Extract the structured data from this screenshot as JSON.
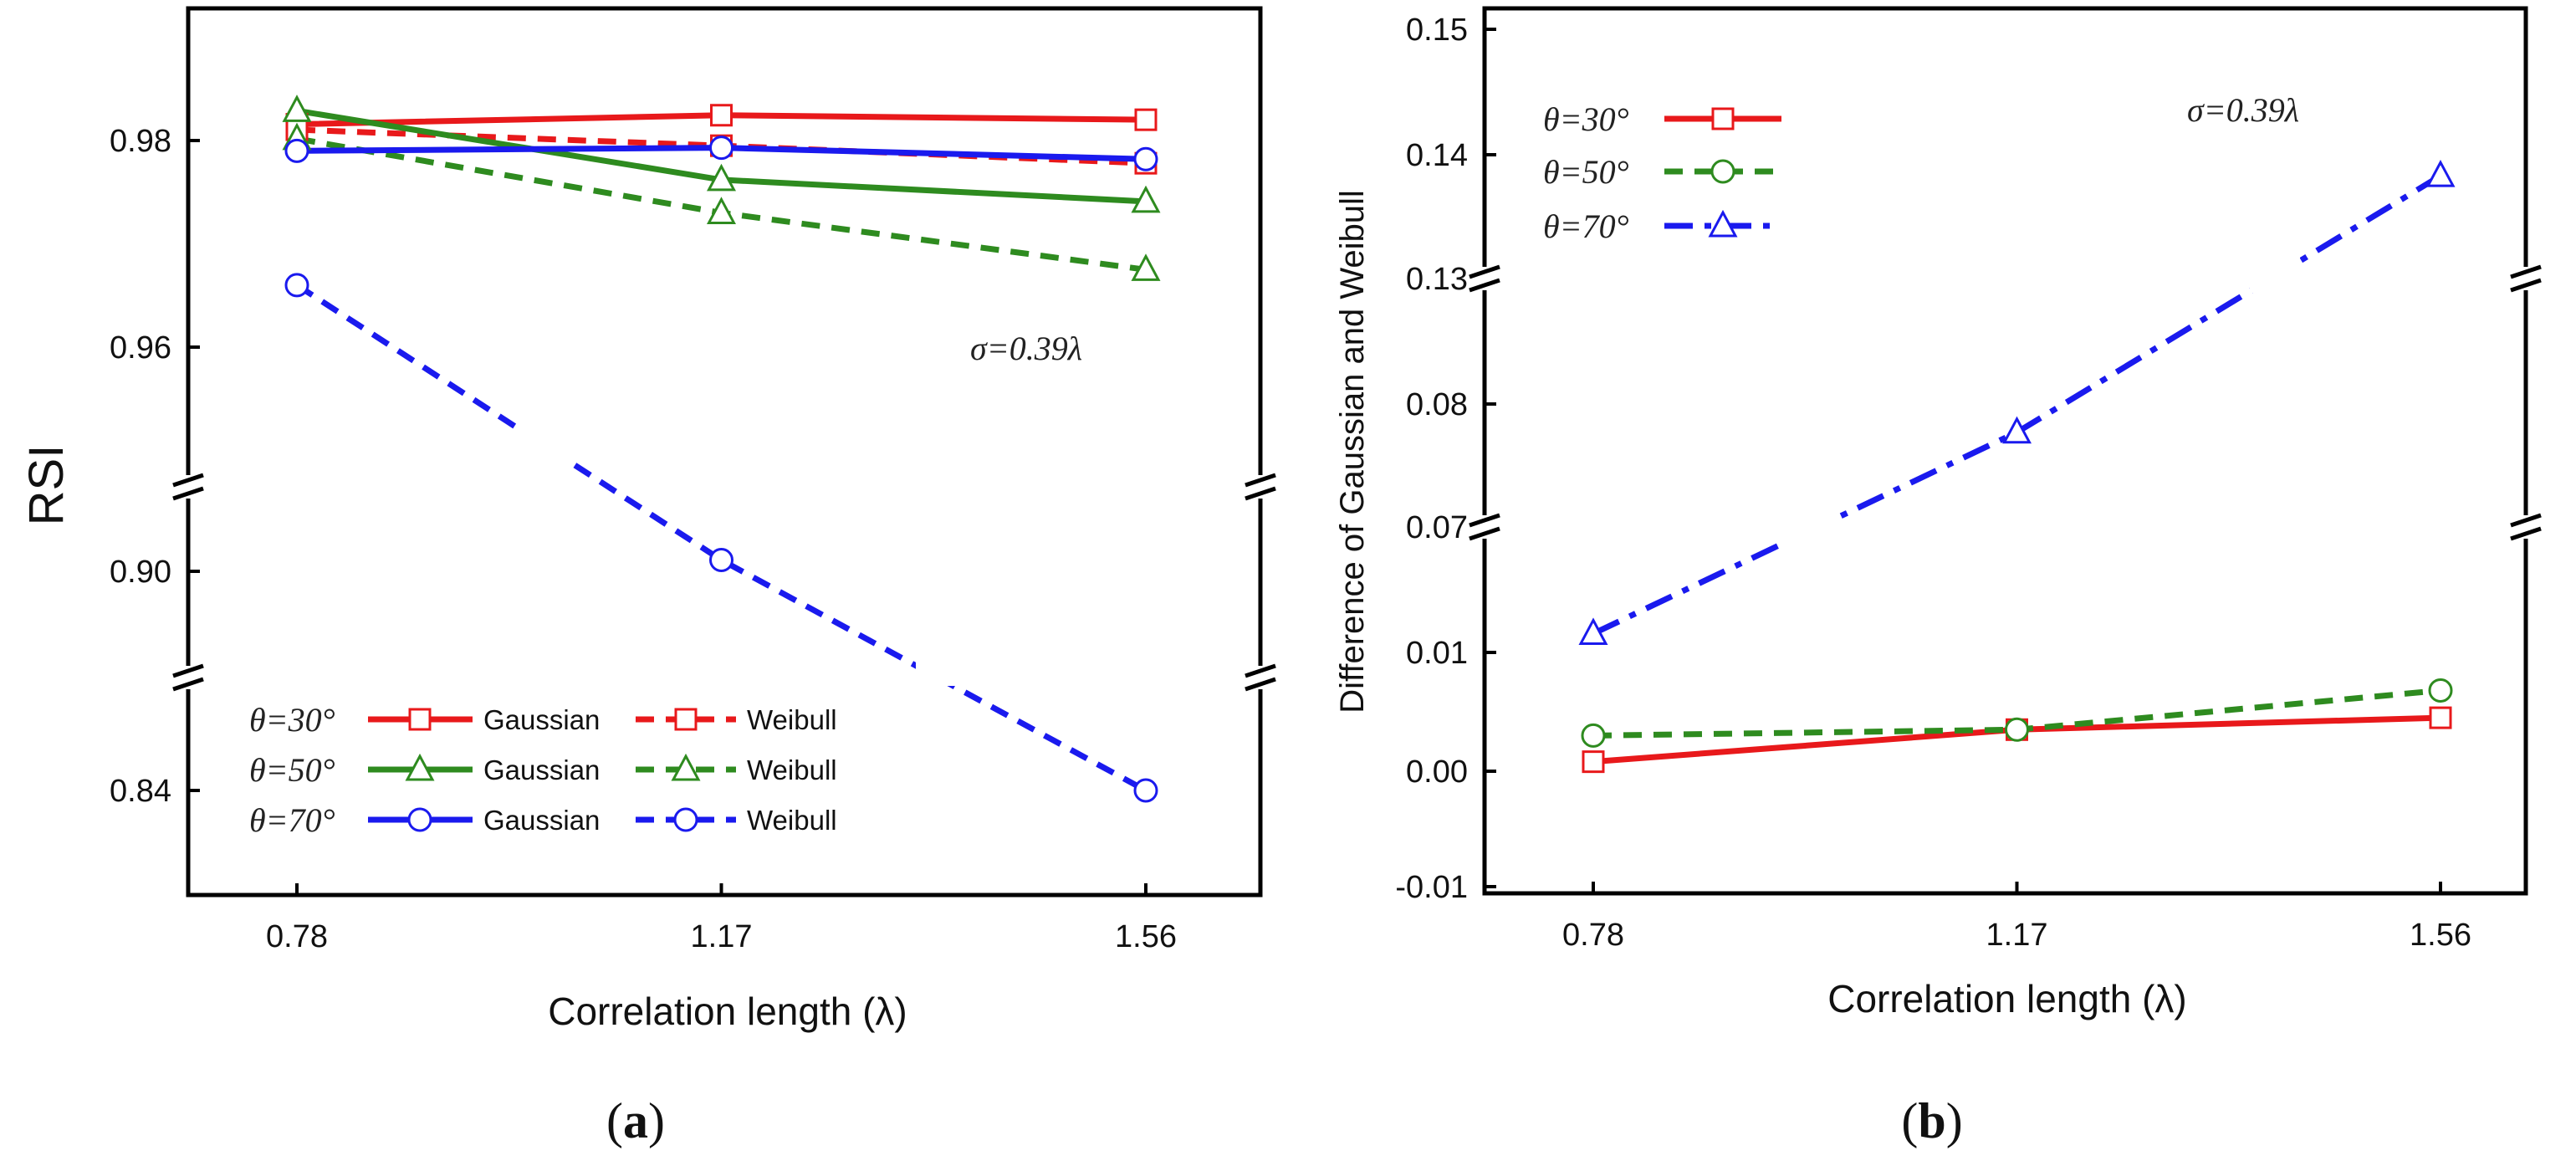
{
  "figure": {
    "caption_a": "a",
    "caption_b": "b"
  },
  "chart_data": [
    {
      "type": "line",
      "panel": "a",
      "xlabel": "Correlation length (λ)",
      "ylabel": "RSI",
      "x": [
        0.78,
        1.17,
        1.56
      ],
      "x_tick_labels": [
        "0.78",
        "1.17",
        "1.56"
      ],
      "y_tick_labels": [
        "0.84",
        "0.90",
        "0.96",
        "0.98"
      ],
      "axis_breaks": true,
      "annotation": "σ=0.39λ",
      "legend_placement": "bottom-left",
      "series": [
        {
          "name": "θ=30° Gaussian",
          "theta": "θ=30°",
          "dist": "Gaussian",
          "color": "#e8191b",
          "dash": "solid",
          "marker": "square",
          "values": [
            0.9818,
            0.9828,
            0.9823
          ]
        },
        {
          "name": "θ=30° Weibull",
          "theta": "θ=30°",
          "dist": "Weibull",
          "color": "#e8191b",
          "dash": "dashed",
          "marker": "square",
          "values": [
            0.9812,
            0.9795,
            0.9778
          ]
        },
        {
          "name": "θ=50° Gaussian",
          "theta": "θ=50°",
          "dist": "Gaussian",
          "color": "#2e8b1f",
          "dash": "solid",
          "marker": "triangle",
          "values": [
            0.9833,
            0.9762,
            0.9741
          ]
        },
        {
          "name": "θ=50° Weibull",
          "theta": "θ=50°",
          "dist": "Weibull",
          "color": "#2e8b1f",
          "dash": "dashed",
          "marker": "triangle",
          "values": [
            0.9802,
            0.973,
            0.9675
          ]
        },
        {
          "name": "θ=70° Gaussian",
          "theta": "θ=70°",
          "dist": "Gaussian",
          "color": "#1a1aee",
          "dash": "solid",
          "marker": "circle",
          "values": [
            0.979,
            0.9793,
            0.9782
          ]
        },
        {
          "name": "θ=70° Weibull",
          "theta": "θ=70°",
          "dist": "Weibull",
          "color": "#1a1aee",
          "dash": "dashed",
          "marker": "circle",
          "values": [
            0.966,
            0.902,
            0.84
          ]
        }
      ]
    },
    {
      "type": "line",
      "panel": "b",
      "xlabel": "Correlation length (λ)",
      "ylabel": "Difference of Gaussian and Weibull",
      "x": [
        0.78,
        1.17,
        1.56
      ],
      "x_tick_labels": [
        "0.78",
        "1.17",
        "1.56"
      ],
      "y_tick_labels": [
        "-0.01",
        "0.00",
        "0.01",
        "0.07",
        "0.08",
        "0.13",
        "0.14",
        "0.15"
      ],
      "axis_breaks": true,
      "annotation": "σ=0.39λ",
      "legend_placement": "top-left",
      "series": [
        {
          "name": "θ=30°",
          "color": "#e8191b",
          "dash": "solid",
          "marker": "square",
          "values": [
            0.0008,
            0.0035,
            0.0045
          ]
        },
        {
          "name": "θ=50°",
          "color": "#2e8b1f",
          "dash": "dashed",
          "marker": "circle",
          "values": [
            0.003,
            0.0035,
            0.0068
          ]
        },
        {
          "name": "θ=70°",
          "color": "#1a1aee",
          "dash": "dashdot",
          "marker": "triangle",
          "values": [
            0.013,
            0.0777,
            0.1383
          ]
        }
      ]
    }
  ]
}
